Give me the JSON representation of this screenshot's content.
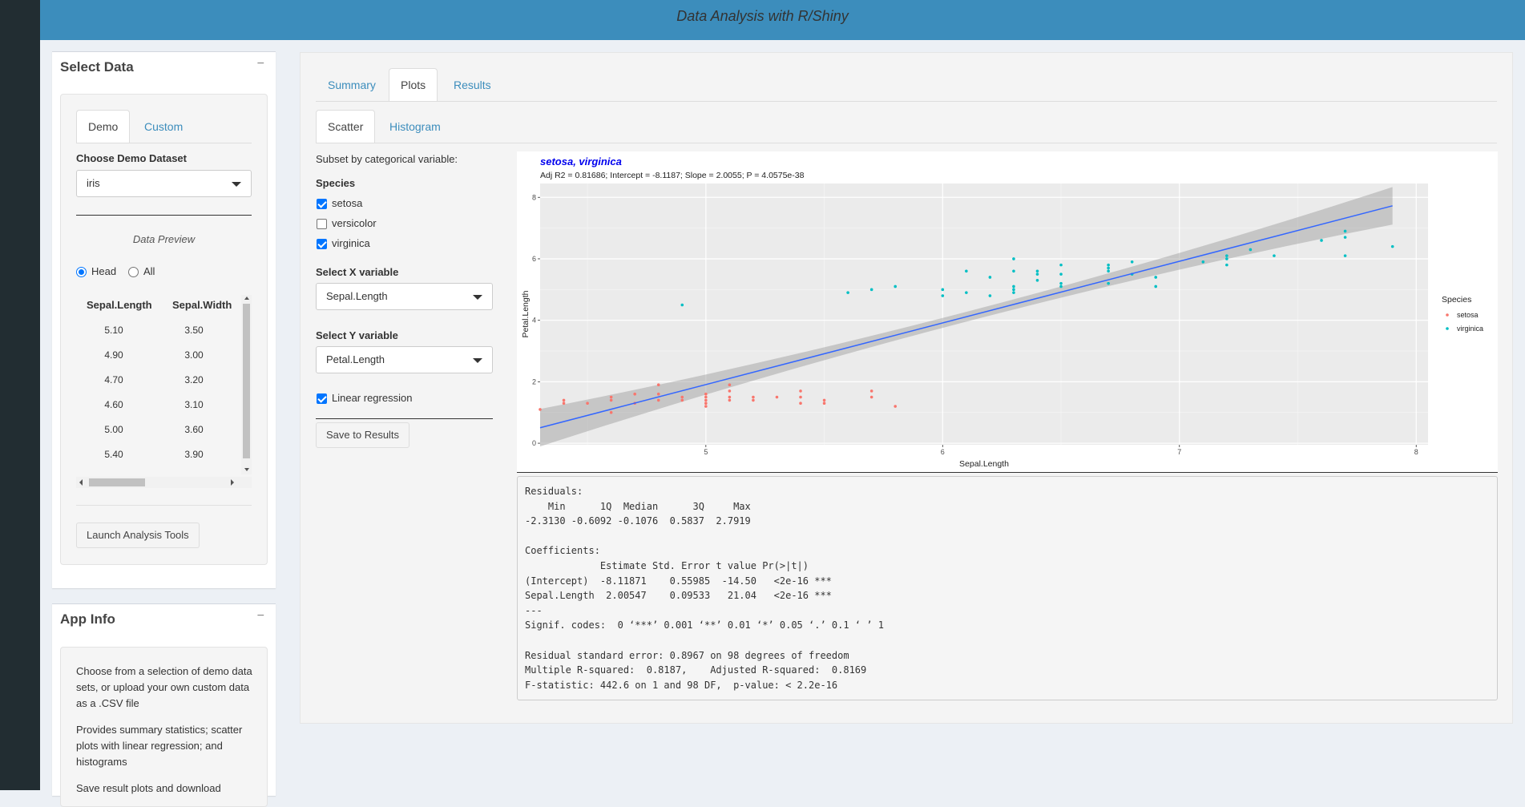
{
  "app": {
    "title": "Data Analysis with R/Shiny"
  },
  "sidebar": {
    "select_data": {
      "title": "Select Data",
      "collapse": "−",
      "tabs": [
        "Demo",
        "Custom"
      ],
      "dataset_label": "Choose Demo Dataset",
      "dataset_value": "iris",
      "preview_title": "Data Preview",
      "radio_head": "Head",
      "radio_all": "All",
      "table": {
        "columns": [
          "Sepal.Length",
          "Sepal.Width"
        ],
        "rows": [
          [
            "5.10",
            "3.50"
          ],
          [
            "4.90",
            "3.00"
          ],
          [
            "4.70",
            "3.20"
          ],
          [
            "4.60",
            "3.10"
          ],
          [
            "5.00",
            "3.60"
          ],
          [
            "5.40",
            "3.90"
          ]
        ]
      },
      "launch_button": "Launch Analysis Tools"
    },
    "app_info": {
      "title": "App Info",
      "collapse": "−",
      "paragraph1": "Choose from a selection of demo data sets, or upload your own custom data as a .CSV file",
      "paragraph2": "Provides summary statistics; scatter plots with linear regression; and histograms",
      "paragraph3": "Save result plots and download"
    }
  },
  "main": {
    "tabs": [
      "Summary",
      "Plots",
      "Results"
    ],
    "subtabs": [
      "Scatter",
      "Histogram"
    ],
    "controls": {
      "subset_label": "Subset by categorical variable:",
      "species_label": "Species",
      "species": [
        {
          "name": "setosa",
          "checked": true
        },
        {
          "name": "versicolor",
          "checked": false
        },
        {
          "name": "virginica",
          "checked": true
        }
      ],
      "x_label": "Select X variable",
      "x_value": "Sepal.Length",
      "y_label": "Select Y variable",
      "y_value": "Petal.Length",
      "regression_label": "Linear regression",
      "save_button": "Save to Results"
    },
    "regression_output": "Residuals:\n    Min      1Q  Median      3Q     Max \n-2.3130 -0.6092 -0.1076  0.5837  2.7919 \n\nCoefficients:\n             Estimate Std. Error t value Pr(>|t|)    \n(Intercept)  -8.11871    0.55985  -14.50   <2e-16 ***\nSepal.Length  2.00547    0.09533   21.04   <2e-16 ***\n---\nSignif. codes:  0 ‘***’ 0.001 ‘**’ 0.01 ‘*’ 0.05 ‘.’ 0.1 ‘ ’ 1\n\nResidual standard error: 0.8967 on 98 degrees of freedom\nMultiple R-squared:  0.8187,\tAdjusted R-squared:  0.8169 \nF-statistic: 442.6 on 1 and 98 DF,  p-value: < 2.2e-16"
  },
  "chart_data": {
    "type": "scatter",
    "title": "setosa, virginica",
    "subtitle": "Adj R2 = 0.81686; Intercept = -8.1187; Slope = 2.0055; P = 4.0575e-38",
    "xlabel": "Sepal.Length",
    "ylabel": "Petal.Length",
    "xlim": [
      4.3,
      8.05
    ],
    "ylim": [
      -0.05,
      8.45
    ],
    "xticks": [
      5,
      6,
      7,
      8
    ],
    "yticks": [
      0,
      2,
      4,
      6,
      8
    ],
    "legend_title": "Species",
    "regression": {
      "intercept": -8.1187,
      "slope": 2.0055,
      "x_range": [
        4.3,
        7.9
      ]
    },
    "series": [
      {
        "name": "setosa",
        "color": "#F8766D",
        "points": [
          [
            4.3,
            1.1
          ],
          [
            4.4,
            1.3
          ],
          [
            4.4,
            1.4
          ],
          [
            4.5,
            1.3
          ],
          [
            4.6,
            1.0
          ],
          [
            4.6,
            1.4
          ],
          [
            4.6,
            1.5
          ],
          [
            4.7,
            1.3
          ],
          [
            4.7,
            1.6
          ],
          [
            4.8,
            1.4
          ],
          [
            4.8,
            1.6
          ],
          [
            4.8,
            1.9
          ],
          [
            4.9,
            1.4
          ],
          [
            4.9,
            1.5
          ],
          [
            5.0,
            1.2
          ],
          [
            5.0,
            1.3
          ],
          [
            5.0,
            1.4
          ],
          [
            5.0,
            1.5
          ],
          [
            5.0,
            1.6
          ],
          [
            5.1,
            1.4
          ],
          [
            5.1,
            1.5
          ],
          [
            5.1,
            1.7
          ],
          [
            5.1,
            1.9
          ],
          [
            5.2,
            1.4
          ],
          [
            5.2,
            1.5
          ],
          [
            5.3,
            1.5
          ],
          [
            5.4,
            1.3
          ],
          [
            5.4,
            1.5
          ],
          [
            5.4,
            1.7
          ],
          [
            5.5,
            1.3
          ],
          [
            5.5,
            1.4
          ],
          [
            5.7,
            1.5
          ],
          [
            5.7,
            1.7
          ],
          [
            5.8,
            1.2
          ]
        ]
      },
      {
        "name": "virginica",
        "color": "#00BFC4",
        "points": [
          [
            4.9,
            4.5
          ],
          [
            5.6,
            4.9
          ],
          [
            5.7,
            5.0
          ],
          [
            5.8,
            5.1
          ],
          [
            6.0,
            4.8
          ],
          [
            6.0,
            5.0
          ],
          [
            6.1,
            4.9
          ],
          [
            6.1,
            5.6
          ],
          [
            6.2,
            4.8
          ],
          [
            6.2,
            5.4
          ],
          [
            6.3,
            4.9
          ],
          [
            6.3,
            5.0
          ],
          [
            6.3,
            5.1
          ],
          [
            6.3,
            5.6
          ],
          [
            6.3,
            6.0
          ],
          [
            6.4,
            5.3
          ],
          [
            6.4,
            5.5
          ],
          [
            6.4,
            5.6
          ],
          [
            6.5,
            5.1
          ],
          [
            6.5,
            5.2
          ],
          [
            6.5,
            5.5
          ],
          [
            6.5,
            5.8
          ],
          [
            6.7,
            5.2
          ],
          [
            6.7,
            5.6
          ],
          [
            6.7,
            5.7
          ],
          [
            6.7,
            5.8
          ],
          [
            6.8,
            5.5
          ],
          [
            6.8,
            5.9
          ],
          [
            6.9,
            5.1
          ],
          [
            6.9,
            5.4
          ],
          [
            7.1,
            5.9
          ],
          [
            7.2,
            5.8
          ],
          [
            7.2,
            6.0
          ],
          [
            7.2,
            6.1
          ],
          [
            7.3,
            6.3
          ],
          [
            7.4,
            6.1
          ],
          [
            7.6,
            6.6
          ],
          [
            7.7,
            6.1
          ],
          [
            7.7,
            6.7
          ],
          [
            7.7,
            6.9
          ],
          [
            7.9,
            6.4
          ]
        ]
      }
    ]
  }
}
